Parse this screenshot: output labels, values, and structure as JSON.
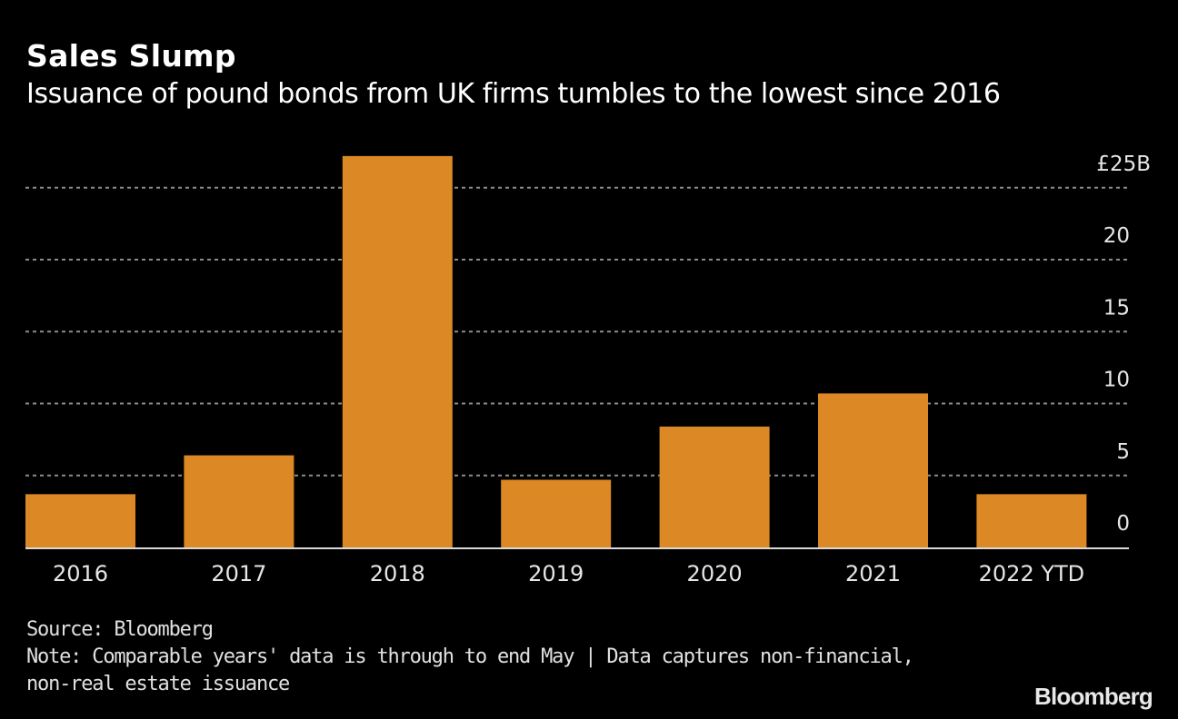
{
  "header": {
    "title": "Sales Slump",
    "subtitle": "Issuance of pound bonds from UK firms tumbles to the lowest since 2016"
  },
  "footer": {
    "source": "Source: Bloomberg",
    "note_line1": "Note: Comparable years' data is through to end May | Data captures non-financial,",
    "note_line2": "non-real estate issuance"
  },
  "brand": {
    "logo_text": "Bloomberg"
  },
  "colors": {
    "background": "#000000",
    "bar": "#dc8825",
    "grid": "#8c8c8c",
    "axis": "#d9d9d9",
    "text": "#e6e6e6"
  },
  "chart_data": {
    "type": "bar",
    "title": "Sales Slump",
    "subtitle": "Issuance of pound bonds from UK firms tumbles to the lowest since 2016",
    "categories": [
      "2016",
      "2017",
      "2018",
      "2019",
      "2020",
      "2021",
      "2022 YTD"
    ],
    "values": [
      3.7,
      6.4,
      27.2,
      4.7,
      8.4,
      10.7,
      3.7
    ],
    "unit": "£B",
    "xlabel": "",
    "ylabel": "",
    "ylim": [
      0,
      25
    ],
    "yticks": [
      0,
      5,
      10,
      15,
      20,
      25
    ],
    "ytick_labels": [
      "0",
      "5",
      "10",
      "15",
      "20",
      "£25B"
    ],
    "y_axis_position": "right",
    "grid": true,
    "grid_style": "dotted",
    "legend": "none"
  }
}
